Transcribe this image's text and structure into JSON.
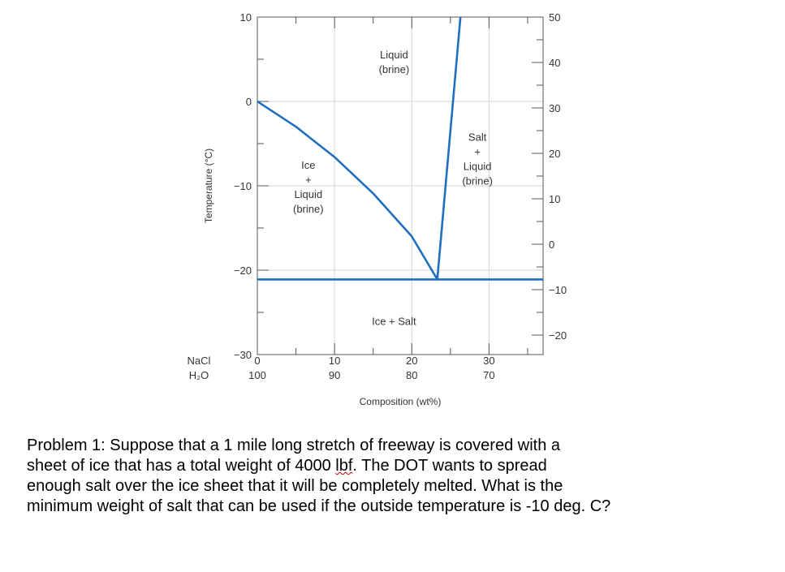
{
  "chart_data": {
    "type": "line",
    "title": "",
    "xlabel": "Composition (wt%)",
    "ylabel_left": "Temperature (°C)",
    "ylabel_right": "",
    "x_component_labels": {
      "top": "NaCl",
      "bottom": "H₂O"
    },
    "x_ticks": [
      {
        "nacl": "0",
        "h2o": "100",
        "value": 0
      },
      {
        "nacl": "10",
        "h2o": "90",
        "value": 10
      },
      {
        "nacl": "20",
        "h2o": "80",
        "value": 20
      },
      {
        "nacl": "30",
        "h2o": "70",
        "value": 30
      }
    ],
    "xlim": [
      0,
      37
    ],
    "ylim_left": [
      -30,
      10
    ],
    "y_ticks_left": [
      {
        "label": "10",
        "value": 10
      },
      {
        "label": "0",
        "value": 0
      },
      {
        "label": "−10",
        "value": -10
      },
      {
        "label": "−20",
        "value": -20
      },
      {
        "label": "−30",
        "value": -30
      }
    ],
    "y_ticks_right": [
      {
        "label": "50",
        "value": 50
      },
      {
        "label": "40",
        "value": 40
      },
      {
        "label": "30",
        "value": 30
      },
      {
        "label": "20",
        "value": 20
      },
      {
        "label": "10",
        "value": 10
      },
      {
        "label": "0",
        "value": 0
      },
      {
        "label": "−10",
        "value": -10
      },
      {
        "label": "−20",
        "value": -20
      }
    ],
    "series": [
      {
        "x": [
          0,
          5,
          10,
          15,
          20,
          23.3
        ],
        "y": [
          0,
          -3.0,
          -6.6,
          -10.9,
          -16.0,
          -21.1
        ]
      },
      {
        "x": [
          23.3,
          26.3
        ],
        "y": [
          -21.1,
          10
        ]
      },
      {
        "x": [
          0,
          37
        ],
        "y": [
          -21.1,
          -21.1
        ]
      }
    ],
    "regions": [
      {
        "lines": [
          "Liquid",
          "(brine)"
        ],
        "x": 17.7,
        "y": 4.7
      },
      {
        "lines": [
          "Ice",
          "+",
          "Liquid",
          "(brine)"
        ],
        "x": 6.6,
        "y": -10.1
      },
      {
        "lines": [
          "Salt",
          "+",
          "Liquid",
          "(brine)"
        ],
        "x": 28.5,
        "y": -6.8
      },
      {
        "lines": [
          "Ice + Salt"
        ],
        "x": 17.7,
        "y": -26.0
      }
    ],
    "line_color": "#1f6fc0",
    "grid": true
  },
  "problem_text": {
    "line1": "Problem 1: Suppose that a 1 mile long stretch of freeway is covered with a",
    "line2_before": "sheet of ice that has a total weight of 4000 ",
    "line2_unit": "lbf",
    "line2_after": ".   The DOT wants to spread",
    "line3": "enough salt over the ice sheet that it will be completely melted.  What is the",
    "line4": "minimum weight of salt that can be used if the outside temperature is -10 deg. C?"
  }
}
